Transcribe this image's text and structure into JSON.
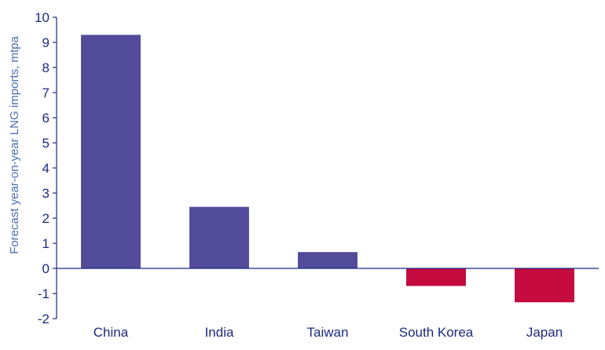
{
  "chart_data": {
    "type": "bar",
    "title": "",
    "xlabel": "",
    "ylabel": "Forecast year-on-year LNG imports, mtpa",
    "categories": [
      "China",
      "India",
      "Taiwan",
      "South Korea",
      "Japan"
    ],
    "values": [
      9.3,
      2.45,
      0.65,
      -0.7,
      -1.35
    ],
    "ylim": [
      -2,
      10
    ],
    "yticks": [
      10,
      9,
      8,
      7,
      6,
      5,
      4,
      3,
      2,
      1,
      0,
      -1,
      -2
    ],
    "grid": false,
    "legend": "none",
    "colors": {
      "positive": "#524b9a",
      "negative": "#c40a3e",
      "axis": "#1a2a80"
    }
  }
}
